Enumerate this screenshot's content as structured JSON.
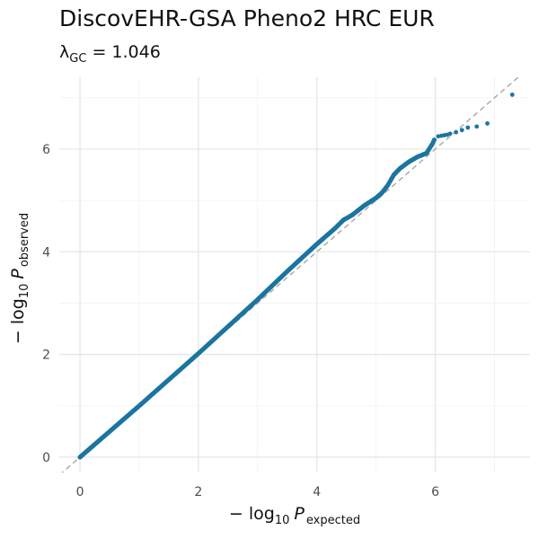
{
  "chart_data": {
    "type": "scatter",
    "title": "DiscovEHR-GSA Pheno2 HRC EUR",
    "subtitle": {
      "lambda_symbol": "λ",
      "lambda_subscript": "GC",
      "lambda_value": "= 1.046"
    },
    "xlabel": {
      "prefix": "− log",
      "base": "10",
      "var": "P",
      "subscript": "expected"
    },
    "ylabel": {
      "prefix": "− log",
      "base": "10",
      "var": "P",
      "subscript": "observed"
    },
    "xlim": [
      -0.35,
      7.6
    ],
    "ylim": [
      -0.3,
      7.4
    ],
    "x_ticks": [
      0,
      2,
      4,
      6
    ],
    "y_ticks": [
      0,
      2,
      4,
      6
    ],
    "grid": true,
    "reference_line": {
      "slope": 1,
      "intercept": 0,
      "style": "dashed"
    },
    "point_color": "#1b75a0",
    "reference_color": "#b0b0b0",
    "series": [
      {
        "dense_curve": [
          [
            0,
            0
          ],
          [
            1,
            1.0
          ],
          [
            2,
            2.02
          ],
          [
            3,
            3.07
          ],
          [
            3.5,
            3.62
          ],
          [
            4,
            4.15
          ],
          [
            4.3,
            4.45
          ],
          [
            4.45,
            4.62
          ],
          [
            4.6,
            4.72
          ],
          [
            4.8,
            4.9
          ],
          [
            5.0,
            5.05
          ],
          [
            5.1,
            5.15
          ],
          [
            5.2,
            5.3
          ],
          [
            5.3,
            5.5
          ],
          [
            5.4,
            5.62
          ],
          [
            5.55,
            5.75
          ],
          [
            5.7,
            5.85
          ],
          [
            5.85,
            5.92
          ],
          [
            5.95,
            6.1
          ],
          [
            6.0,
            6.22
          ]
        ],
        "tail_points": [
          [
            6.05,
            6.25
          ],
          [
            6.1,
            6.26
          ],
          [
            6.15,
            6.27
          ],
          [
            6.2,
            6.28
          ],
          [
            6.25,
            6.3
          ],
          [
            6.35,
            6.33
          ],
          [
            6.45,
            6.37
          ],
          [
            6.55,
            6.42
          ],
          [
            6.7,
            6.44
          ],
          [
            6.88,
            6.5
          ],
          [
            7.3,
            7.06
          ]
        ]
      }
    ]
  }
}
